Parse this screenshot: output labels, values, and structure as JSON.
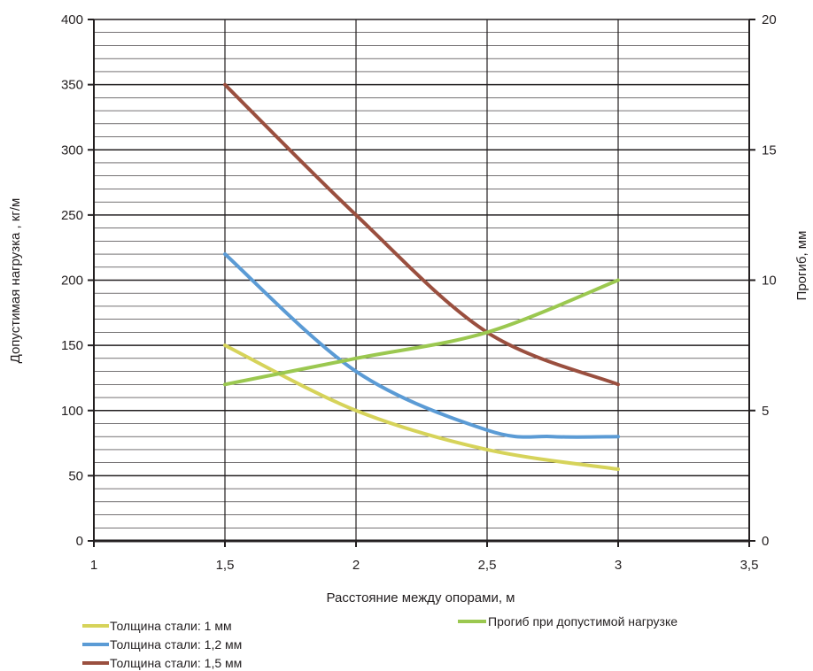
{
  "chart_data": {
    "type": "line",
    "title": "",
    "xlabel": "Расстояние между опорами, м",
    "ylabel": "Допустимая нагрузка , кг/м",
    "y2label": "Прогиб, мм",
    "xlim": [
      1,
      3.5
    ],
    "ylim": [
      0,
      400
    ],
    "y2lim": [
      0,
      20
    ],
    "x_ticks": [
      "1",
      "1,5",
      "2",
      "2,5",
      "3",
      "3,5"
    ],
    "y_ticks": [
      "0",
      "50",
      "100",
      "150",
      "200",
      "250",
      "300",
      "350",
      "400"
    ],
    "y2_ticks": [
      "0",
      "5",
      "10",
      "15",
      "20"
    ],
    "grid": true,
    "legend_position": "bottom",
    "series": [
      {
        "name": "Толщина стали: 1 мм",
        "axis": "left",
        "color": "#d6d35a",
        "x": [
          1.5,
          2,
          2.5,
          3
        ],
        "values": [
          150,
          100,
          70,
          55
        ]
      },
      {
        "name": "Толщина стали: 1,2 мм",
        "axis": "left",
        "color": "#5b9bd5",
        "x": [
          1.5,
          2,
          2.5,
          2.75,
          3
        ],
        "values": [
          220,
          130,
          85,
          80,
          80
        ]
      },
      {
        "name": "Толщина стали: 1,5 мм",
        "axis": "left",
        "color": "#9a4f3f",
        "x": [
          1.5,
          2,
          2.5,
          3
        ],
        "values": [
          350,
          250,
          160,
          120
        ]
      },
      {
        "name": "Прогиб при допустимой нагрузке",
        "axis": "right",
        "color": "#9bc850",
        "x": [
          1.5,
          2,
          2.5,
          3
        ],
        "values": [
          6,
          7,
          8,
          10
        ]
      }
    ]
  }
}
